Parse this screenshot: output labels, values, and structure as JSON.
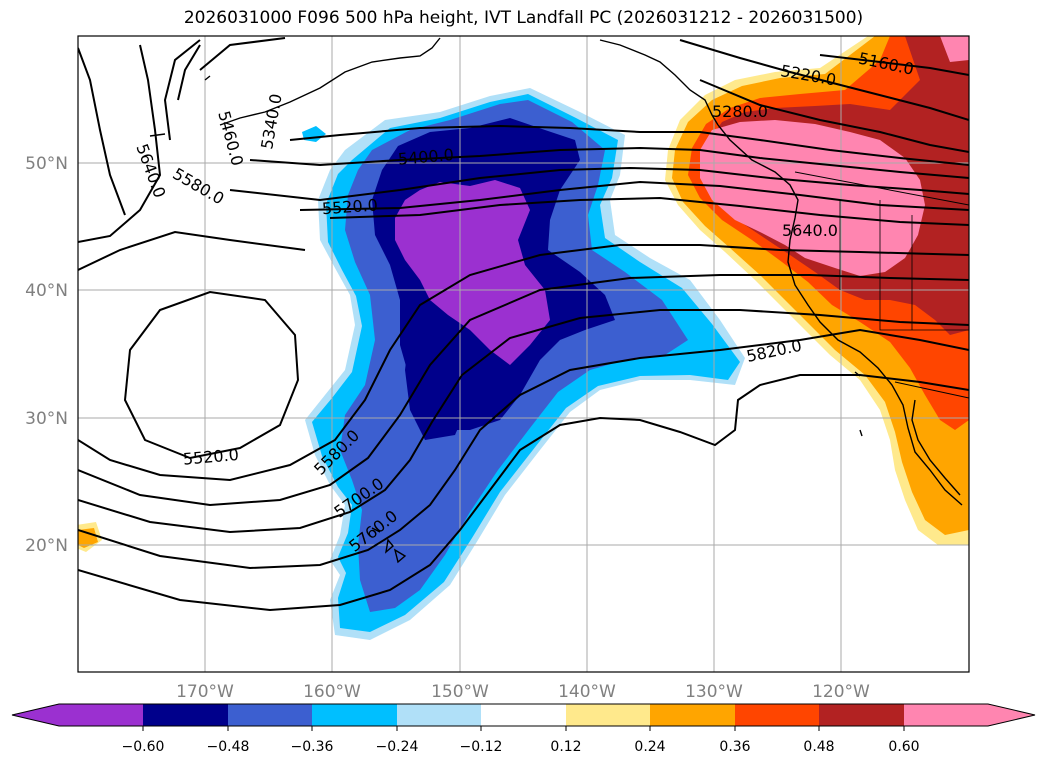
{
  "title": "2026031000 F096 500 hPa height, IVT Landfall PC (2026031212 - 2026031500)",
  "map": {
    "lat_labels": [
      "50°N",
      "40°N",
      "30°N",
      "20°N"
    ],
    "lon_labels": [
      "170°W",
      "160°W",
      "150°W",
      "140°W",
      "130°W",
      "120°W"
    ],
    "contour_labels": [
      "5160.0",
      "5220.0",
      "5280.0",
      "5340.0",
      "5400.0",
      "5460.0",
      "5520.0",
      "5520.0",
      "5580.0",
      "5580.0",
      "5640.0",
      "5640.0",
      "5700.0",
      "5760.0",
      "5820.0"
    ]
  },
  "colorbar": {
    "ticks": [
      "−0.60",
      "−0.48",
      "−0.36",
      "−0.24",
      "−0.12",
      "0.12",
      "0.24",
      "0.36",
      "0.48",
      "0.60"
    ],
    "colors": [
      "#9b30d0",
      "#00008b",
      "#3c5fd0",
      "#00bfff",
      "#b0e0f8",
      "#ffffff",
      "#ffe98c",
      "#ffa500",
      "#ff4500",
      "#b22222",
      "#ff85b0"
    ]
  },
  "colors": {
    "grid": "#aaaaaa",
    "contour": "#000000",
    "coast": "#000000"
  }
}
